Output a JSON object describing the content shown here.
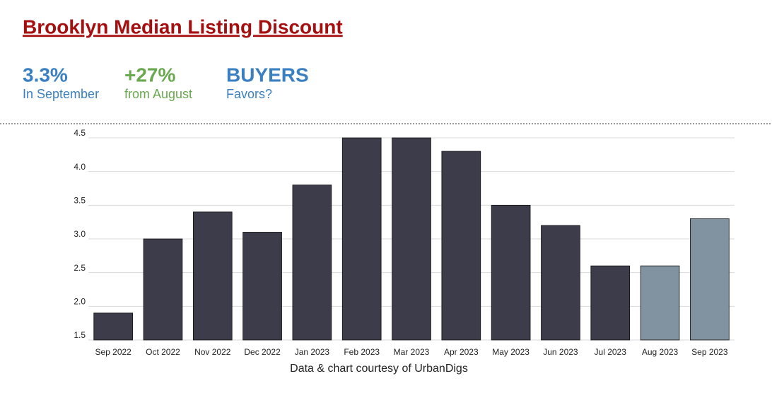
{
  "header": {
    "title": "Brooklyn Median Listing Discount",
    "stats": [
      {
        "value": "3.3%",
        "label": "In September",
        "color": "#3a7fc1"
      },
      {
        "value": "+27%",
        "label": "from August",
        "color": "#6aa84f"
      },
      {
        "value": "BUYERS",
        "label": "Favors?",
        "color": "#3a7fc1"
      }
    ]
  },
  "chart_data": {
    "type": "bar",
    "categories": [
      "Sep 2022",
      "Oct 2022",
      "Nov 2022",
      "Dec 2022",
      "Jan 2023",
      "Feb 2023",
      "Mar 2023",
      "Apr 2023",
      "May 2023",
      "Jun 2023",
      "Jul 2023",
      "Aug 2023",
      "Sep 2023"
    ],
    "values": [
      1.9,
      3.0,
      3.4,
      3.1,
      3.8,
      4.5,
      4.5,
      4.3,
      3.5,
      3.2,
      2.6,
      2.6,
      3.3
    ],
    "colors": [
      "#3d3c4a",
      "#3d3c4a",
      "#3d3c4a",
      "#3d3c4a",
      "#3d3c4a",
      "#3d3c4a",
      "#3d3c4a",
      "#3d3c4a",
      "#3d3c4a",
      "#3d3c4a",
      "#3d3c4a",
      "#8193a0",
      "#8193a0"
    ],
    "ylim": [
      1.5,
      4.5
    ],
    "yticks": [
      1.5,
      {
        "value": 2,
        "label": "2.0"
      },
      2.5,
      {
        "value": 3,
        "label": "3.0"
      },
      3.5,
      {
        "value": 4,
        "label": "4.0"
      },
      4.5
    ],
    "grid": true,
    "caption": "Data & chart courtesy of UrbanDigs"
  }
}
